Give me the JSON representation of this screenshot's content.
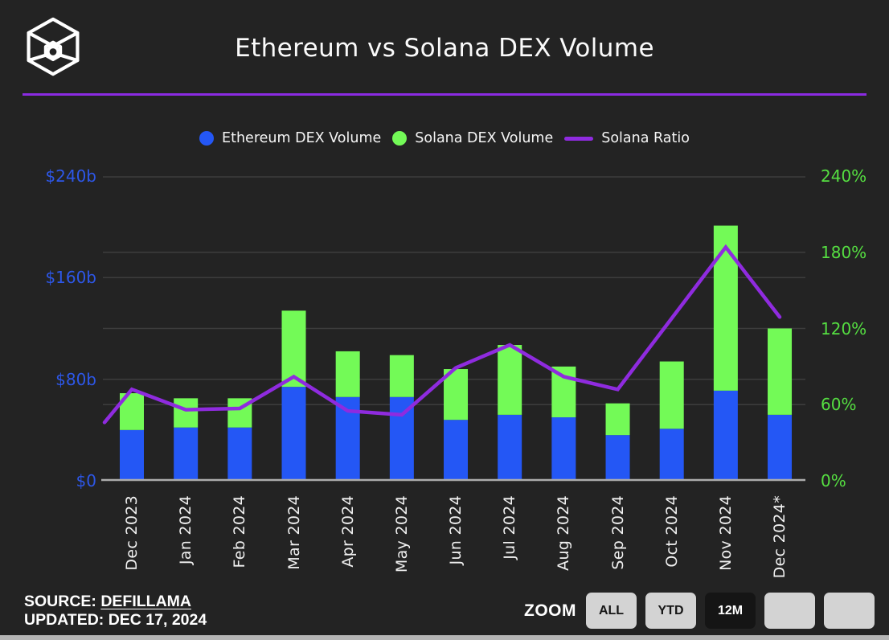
{
  "header": {
    "title": "Ethereum vs Solana DEX Volume",
    "logo": "cube-wireframe-logo"
  },
  "legend": {
    "items": [
      {
        "label": "Ethereum DEX Volume",
        "marker": "dot",
        "color": "#2457F5"
      },
      {
        "label": "Solana DEX Volume",
        "marker": "dot",
        "color": "#73FA57"
      },
      {
        "label": "Solana Ratio",
        "marker": "line",
        "color": "#8F2BDF"
      }
    ]
  },
  "chart_data": {
    "type": "bar",
    "title": "Ethereum vs Solana DEX Volume",
    "categories": [
      "Dec 2023",
      "Jan 2024",
      "Feb 2024",
      "Mar 2024",
      "Apr 2024",
      "May 2024",
      "Jun 2024",
      "Jul 2024",
      "Aug 2024",
      "Sep 2024",
      "Oct 2024",
      "Nov 2024",
      "Dec 2024*"
    ],
    "series": [
      {
        "name": "Ethereum DEX Volume",
        "type": "bar",
        "stack": "volume",
        "axis": "left",
        "color": "#2457F5",
        "unit": "$b",
        "values": [
          40,
          42,
          42,
          74,
          66,
          66,
          48,
          52,
          50,
          36,
          41,
          71,
          52
        ]
      },
      {
        "name": "Solana DEX Volume",
        "type": "bar",
        "stack": "volume",
        "axis": "left",
        "color": "#73FA57",
        "unit": "$b",
        "values": [
          29,
          23,
          23,
          60,
          36,
          33,
          40,
          55,
          40,
          25,
          53,
          130,
          68
        ]
      },
      {
        "name": "Solana Ratio",
        "type": "line",
        "axis": "right",
        "color": "#8F2BDF",
        "unit": "%",
        "lead_in_value": 46,
        "values": [
          72,
          56,
          57,
          82,
          55,
          52,
          89,
          107,
          82,
          72,
          128,
          184,
          129
        ]
      }
    ],
    "left_axis": {
      "unit": "$b",
      "min": 0,
      "max": 240,
      "color": "#2D57E8",
      "ticks": [
        {
          "label": "$240b",
          "value": 240
        },
        {
          "label": "$160b",
          "value": 160
        },
        {
          "label": "$80b",
          "value": 80
        },
        {
          "label": "$0",
          "value": 0
        }
      ]
    },
    "right_axis": {
      "unit": "%",
      "min": 0,
      "max": 240,
      "color": "#55DE41",
      "ticks": [
        {
          "label": "240%",
          "value": 240
        },
        {
          "label": "180%",
          "value": 180
        },
        {
          "label": "120%",
          "value": 120
        },
        {
          "label": "60%",
          "value": 60
        },
        {
          "label": "0%",
          "value": 0
        }
      ]
    },
    "grid": true,
    "legend_position": "top"
  },
  "footer": {
    "source_label": "SOURCE:",
    "source_link_text": "DEFILLAMA",
    "updated_text": "UPDATED: DEC 17, 2024"
  },
  "zoom_controls": {
    "label": "ZOOM",
    "buttons": [
      {
        "label": "ALL",
        "active": false
      },
      {
        "label": "YTD",
        "active": false
      },
      {
        "label": "12M",
        "active": true
      },
      {
        "label": "",
        "active": false
      },
      {
        "label": "",
        "active": false
      }
    ]
  },
  "colors": {
    "background": "#232323",
    "divider": "#8B2BE2",
    "gridline": "#3D3D3D",
    "baseline": "#ADADAD",
    "button_light": "#D3D3D3",
    "button_dark": "#151515"
  }
}
